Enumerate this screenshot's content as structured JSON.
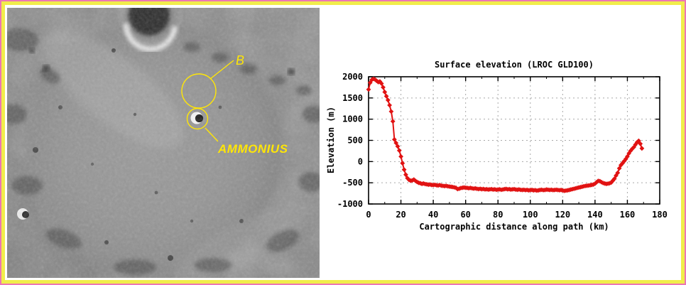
{
  "frame": {
    "outer_border_color": "#ec76b4",
    "inner_border_color": "#f1ed4b",
    "background": "#ffffff"
  },
  "moon_panel": {
    "label_b": "B",
    "label_ammonius": "AMMONIUS",
    "annotation_color": "#ffe606"
  },
  "chart_data": {
    "type": "line",
    "title": "Surface elevation (LROC GLD100)",
    "xlabel": "Cartographic distance along path (km)",
    "ylabel": "Elevation (m)",
    "xlim": [
      0,
      180
    ],
    "ylim": [
      -1000,
      2000
    ],
    "xticks": [
      0,
      20,
      40,
      60,
      80,
      100,
      120,
      140,
      160,
      180
    ],
    "yticks": [
      -1000,
      -500,
      0,
      500,
      1000,
      1500,
      2000
    ],
    "grid": true,
    "legend": "none",
    "line_color": "#e11212",
    "marker": "diamond",
    "series": [
      {
        "name": "elevation_profile",
        "points": [
          [
            0,
            1700
          ],
          [
            1,
            1860
          ],
          [
            2,
            1930
          ],
          [
            3,
            1950
          ],
          [
            4,
            1935
          ],
          [
            5,
            1905
          ],
          [
            6,
            1875
          ],
          [
            7,
            1890
          ],
          [
            8,
            1840
          ],
          [
            9,
            1750
          ],
          [
            10,
            1640
          ],
          [
            11,
            1540
          ],
          [
            12,
            1450
          ],
          [
            13,
            1330
          ],
          [
            14,
            1180
          ],
          [
            15,
            950
          ],
          [
            16,
            520
          ],
          [
            17,
            440
          ],
          [
            18,
            360
          ],
          [
            19,
            260
          ],
          [
            20,
            120
          ],
          [
            21,
            -40
          ],
          [
            22,
            -190
          ],
          [
            23,
            -310
          ],
          [
            24,
            -390
          ],
          [
            25,
            -430
          ],
          [
            26,
            -450
          ],
          [
            27,
            -445
          ],
          [
            28,
            -425
          ],
          [
            29,
            -455
          ],
          [
            30,
            -480
          ],
          [
            31,
            -500
          ],
          [
            32,
            -510
          ],
          [
            33,
            -525
          ],
          [
            34,
            -515
          ],
          [
            35,
            -530
          ],
          [
            36,
            -535
          ],
          [
            37,
            -545
          ],
          [
            38,
            -540
          ],
          [
            39,
            -550
          ],
          [
            40,
            -555
          ],
          [
            41,
            -548
          ],
          [
            42,
            -558
          ],
          [
            43,
            -565
          ],
          [
            44,
            -555
          ],
          [
            45,
            -568
          ],
          [
            46,
            -572
          ],
          [
            47,
            -578
          ],
          [
            48,
            -572
          ],
          [
            49,
            -582
          ],
          [
            50,
            -590
          ],
          [
            51,
            -595
          ],
          [
            52,
            -600
          ],
          [
            53,
            -608
          ],
          [
            54,
            -618
          ],
          [
            55,
            -648
          ],
          [
            56,
            -640
          ],
          [
            57,
            -625
          ],
          [
            58,
            -618
          ],
          [
            59,
            -612
          ],
          [
            60,
            -618
          ],
          [
            61,
            -622
          ],
          [
            62,
            -628
          ],
          [
            63,
            -622
          ],
          [
            64,
            -632
          ],
          [
            65,
            -638
          ],
          [
            66,
            -632
          ],
          [
            67,
            -642
          ],
          [
            68,
            -648
          ],
          [
            69,
            -642
          ],
          [
            70,
            -652
          ],
          [
            71,
            -647
          ],
          [
            72,
            -657
          ],
          [
            73,
            -652
          ],
          [
            74,
            -660
          ],
          [
            75,
            -655
          ],
          [
            76,
            -650
          ],
          [
            77,
            -660
          ],
          [
            78,
            -655
          ],
          [
            79,
            -665
          ],
          [
            80,
            -660
          ],
          [
            81,
            -655
          ],
          [
            82,
            -665
          ],
          [
            83,
            -658
          ],
          [
            84,
            -650
          ],
          [
            85,
            -645
          ],
          [
            86,
            -655
          ],
          [
            87,
            -650
          ],
          [
            88,
            -660
          ],
          [
            89,
            -655
          ],
          [
            90,
            -650
          ],
          [
            91,
            -660
          ],
          [
            92,
            -665
          ],
          [
            93,
            -656
          ],
          [
            94,
            -666
          ],
          [
            95,
            -670
          ],
          [
            96,
            -664
          ],
          [
            97,
            -674
          ],
          [
            98,
            -668
          ],
          [
            99,
            -678
          ],
          [
            100,
            -672
          ],
          [
            101,
            -668
          ],
          [
            102,
            -678
          ],
          [
            103,
            -673
          ],
          [
            104,
            -683
          ],
          [
            105,
            -678
          ],
          [
            106,
            -670
          ],
          [
            107,
            -664
          ],
          [
            108,
            -674
          ],
          [
            109,
            -669
          ],
          [
            110,
            -660
          ],
          [
            111,
            -665
          ],
          [
            112,
            -670
          ],
          [
            113,
            -664
          ],
          [
            114,
            -674
          ],
          [
            115,
            -669
          ],
          [
            116,
            -664
          ],
          [
            117,
            -670
          ],
          [
            118,
            -675
          ],
          [
            119,
            -670
          ],
          [
            120,
            -680
          ],
          [
            121,
            -690
          ],
          [
            122,
            -684
          ],
          [
            123,
            -678
          ],
          [
            124,
            -670
          ],
          [
            125,
            -660
          ],
          [
            126,
            -650
          ],
          [
            127,
            -642
          ],
          [
            128,
            -632
          ],
          [
            129,
            -622
          ],
          [
            130,
            -612
          ],
          [
            131,
            -602
          ],
          [
            132,
            -592
          ],
          [
            133,
            -582
          ],
          [
            134,
            -575
          ],
          [
            135,
            -570
          ],
          [
            136,
            -564
          ],
          [
            137,
            -558
          ],
          [
            138,
            -550
          ],
          [
            139,
            -540
          ],
          [
            140,
            -520
          ],
          [
            141,
            -485
          ],
          [
            142,
            -455
          ],
          [
            143,
            -462
          ],
          [
            144,
            -485
          ],
          [
            145,
            -505
          ],
          [
            146,
            -518
          ],
          [
            147,
            -525
          ],
          [
            148,
            -520
          ],
          [
            149,
            -512
          ],
          [
            150,
            -495
          ],
          [
            151,
            -450
          ],
          [
            152,
            -405
          ],
          [
            153,
            -330
          ],
          [
            154,
            -265
          ],
          [
            155,
            -160
          ],
          [
            156,
            -85
          ],
          [
            157,
            -40
          ],
          [
            158,
            10
          ],
          [
            159,
            60
          ],
          [
            160,
            120
          ],
          [
            161,
            195
          ],
          [
            162,
            255
          ],
          [
            163,
            300
          ],
          [
            164,
            340
          ],
          [
            165,
            400
          ],
          [
            166,
            455
          ],
          [
            167,
            490
          ],
          [
            168,
            420
          ],
          [
            169,
            310
          ]
        ]
      }
    ]
  }
}
